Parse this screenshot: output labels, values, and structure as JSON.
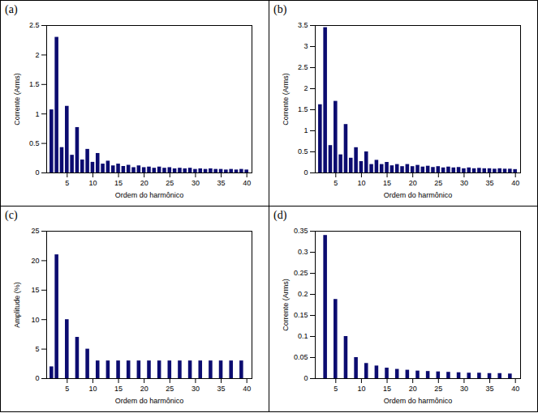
{
  "chart_data": [
    {
      "type": "bar",
      "title": "(a)",
      "x_label": "Ordem do harmônico",
      "y_label": "Corrente (Arms)",
      "x": [
        2,
        3,
        4,
        5,
        6,
        7,
        8,
        9,
        10,
        11,
        12,
        13,
        14,
        15,
        16,
        17,
        18,
        19,
        20,
        21,
        22,
        23,
        24,
        25,
        26,
        27,
        28,
        29,
        30,
        31,
        32,
        33,
        34,
        35,
        36,
        37,
        38,
        39,
        40
      ],
      "values": [
        1.07,
        2.3,
        0.43,
        1.13,
        0.3,
        0.77,
        0.22,
        0.4,
        0.18,
        0.33,
        0.15,
        0.2,
        0.12,
        0.15,
        0.11,
        0.13,
        0.09,
        0.12,
        0.09,
        0.1,
        0.08,
        0.1,
        0.08,
        0.09,
        0.07,
        0.08,
        0.07,
        0.08,
        0.06,
        0.07,
        0.06,
        0.07,
        0.06,
        0.06,
        0.05,
        0.06,
        0.05,
        0.06,
        0.05
      ],
      "color": "#0c0c70",
      "xlim": [
        1,
        41
      ],
      "xticks": [
        5,
        10,
        15,
        20,
        25,
        30,
        35,
        40
      ],
      "ylim": [
        0,
        2.5
      ],
      "yticks": [
        0,
        0.5,
        1,
        1.5,
        2,
        2.5
      ],
      "grid": false
    },
    {
      "type": "bar",
      "title": "(b)",
      "x_label": "Ordem do harmônico",
      "y_label": "Corrente (Arms)",
      "x": [
        2,
        3,
        4,
        5,
        6,
        7,
        8,
        9,
        10,
        11,
        12,
        13,
        14,
        15,
        16,
        17,
        18,
        19,
        20,
        21,
        22,
        23,
        24,
        25,
        26,
        27,
        28,
        29,
        30,
        31,
        32,
        33,
        34,
        35,
        36,
        37,
        38,
        39,
        40
      ],
      "values": [
        1.62,
        3.45,
        0.65,
        1.7,
        0.43,
        1.15,
        0.35,
        0.6,
        0.27,
        0.5,
        0.2,
        0.3,
        0.2,
        0.25,
        0.17,
        0.2,
        0.15,
        0.2,
        0.15,
        0.18,
        0.14,
        0.16,
        0.13,
        0.15,
        0.12,
        0.14,
        0.12,
        0.13,
        0.1,
        0.12,
        0.1,
        0.11,
        0.1,
        0.1,
        0.09,
        0.1,
        0.09,
        0.09,
        0.08
      ],
      "color": "#0c0c70",
      "xlim": [
        1,
        41
      ],
      "xticks": [
        5,
        10,
        15,
        20,
        25,
        30,
        35,
        40
      ],
      "ylim": [
        0,
        3.5
      ],
      "yticks": [
        0,
        0.5,
        1,
        1.5,
        2,
        2.5,
        3,
        3.5
      ],
      "grid": false
    },
    {
      "type": "bar",
      "title": "(c)",
      "x_label": "Ordem do harmônico",
      "y_label": "Amplitude (%)",
      "x": [
        2,
        3,
        5,
        7,
        9,
        11,
        13,
        15,
        17,
        19,
        21,
        23,
        25,
        27,
        29,
        31,
        33,
        35,
        37,
        39
      ],
      "values": [
        2,
        21,
        10,
        7,
        5,
        3,
        3,
        3,
        3,
        3,
        3,
        3,
        3,
        3,
        3,
        3,
        3,
        3,
        3,
        3
      ],
      "color": "#0c0c70",
      "xlim": [
        1,
        41
      ],
      "xticks": [
        5,
        10,
        15,
        20,
        25,
        30,
        35,
        40
      ],
      "ylim": [
        0,
        25
      ],
      "yticks": [
        0,
        5,
        10,
        15,
        20,
        25
      ],
      "grid": false
    },
    {
      "type": "bar",
      "title": "(d)",
      "x_label": "Ordem do harmônico",
      "y_label": "Corrente (Arms)",
      "x": [
        3,
        5,
        7,
        9,
        11,
        13,
        15,
        17,
        19,
        21,
        23,
        25,
        27,
        29,
        31,
        33,
        35,
        37,
        39
      ],
      "values": [
        0.34,
        0.188,
        0.1,
        0.05,
        0.036,
        0.03,
        0.025,
        0.022,
        0.02,
        0.018,
        0.017,
        0.016,
        0.015,
        0.014,
        0.013,
        0.013,
        0.012,
        0.012,
        0.011
      ],
      "color": "#0c0c70",
      "xlim": [
        1,
        41
      ],
      "xticks": [
        5,
        10,
        15,
        20,
        25,
        30,
        35,
        40
      ],
      "ylim": [
        0,
        0.35
      ],
      "yticks": [
        0,
        0.05,
        0.1,
        0.15,
        0.2,
        0.25,
        0.3,
        0.35
      ],
      "grid": false
    }
  ]
}
